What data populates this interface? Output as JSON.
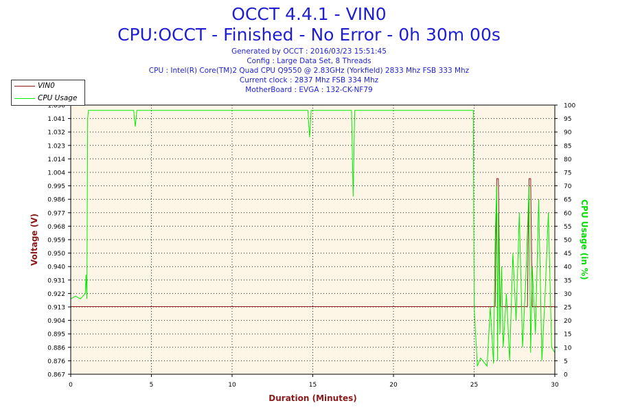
{
  "header": {
    "title": "OCCT 4.4.1 - VIN0",
    "subtitle": "CPU:OCCT - Finished - No Error - 0h 30m 00s",
    "info": [
      "Generated by OCCT : 2016/03/23 15:51:45",
      "Config : Large Data Set, 8 Threads",
      "CPU : Intel(R) Core(TM)2 Quad CPU Q9550 @ 2.83GHz (Yorkfield) 2833 Mhz FSB 333 Mhz",
      "Current clock : 2837 Mhz FSB 334 Mhz",
      "MotherBoard : EVGA : 132-CK-NF79"
    ]
  },
  "legend": {
    "items": [
      {
        "label": "VIN0",
        "color": "#8b1a1a"
      },
      {
        "label": "CPU Usage",
        "color": "#00ee00"
      }
    ]
  },
  "colors": {
    "plot_bg": "#fdf5e6",
    "left_axis": "#8b1a1a",
    "right_axis": "#00dd00",
    "vin_line": "#8b1a1a",
    "cpu_line": "#00ee00"
  },
  "chart_data": {
    "type": "line",
    "xlabel": "Duration (Minutes)",
    "ylabel": "Voltage (V)",
    "y2label": "CPU Usage (in %)",
    "xlim": [
      0,
      30
    ],
    "ylim": [
      0.867,
      1.05
    ],
    "y2lim": [
      0,
      100
    ],
    "x_ticks": [
      0,
      5,
      10,
      15,
      20,
      25,
      30
    ],
    "y_ticks": [
      "0.867",
      "0.876",
      "0.886",
      "0.895",
      "0.904",
      "0.913",
      "0.922",
      "0.931",
      "0.940",
      "0.950",
      "0.959",
      "0.968",
      "0.977",
      "0.986",
      "0.995",
      "1.004",
      "1.014",
      "1.023",
      "1.032",
      "1.041",
      "1.050"
    ],
    "y2_ticks": [
      0,
      5,
      10,
      15,
      20,
      25,
      30,
      35,
      40,
      45,
      50,
      55,
      60,
      65,
      70,
      75,
      80,
      85,
      90,
      95,
      100
    ],
    "grid": true,
    "legend_position": "top-left",
    "series": [
      {
        "name": "VIN0",
        "axis": "left",
        "x": [
          0,
          26.3,
          26.4,
          26.5,
          26.6,
          28.3,
          28.4,
          28.5,
          28.6,
          30
        ],
        "y": [
          0.913,
          0.913,
          1.0,
          1.0,
          0.913,
          0.913,
          1.0,
          1.0,
          0.913,
          0.913
        ]
      },
      {
        "name": "CPU Usage",
        "axis": "right",
        "x": [
          0,
          0.3,
          0.6,
          0.9,
          0.95,
          1.0,
          1.05,
          1.1,
          3.9,
          4.0,
          4.1,
          14.7,
          14.8,
          14.9,
          17.4,
          17.5,
          17.6,
          24.95,
          25.0,
          25.2,
          25.4,
          25.8,
          26.0,
          26.2,
          26.3,
          26.4,
          26.45,
          26.5,
          26.6,
          26.7,
          26.8,
          27.0,
          27.2,
          27.4,
          27.6,
          27.8,
          28.0,
          28.2,
          28.4,
          28.5,
          28.6,
          28.8,
          29.0,
          29.2,
          29.4,
          29.6,
          29.8,
          30.0
        ],
        "y": [
          28,
          29,
          28,
          30,
          37,
          28,
          95,
          98,
          98,
          92,
          98,
          98,
          88,
          98,
          98,
          66,
          98,
          98,
          25,
          3,
          6,
          3,
          25,
          4,
          50,
          70,
          5,
          60,
          15,
          40,
          10,
          30,
          5,
          45,
          20,
          60,
          10,
          35,
          70,
          8,
          40,
          15,
          65,
          5,
          30,
          60,
          10,
          8
        ]
      }
    ]
  }
}
